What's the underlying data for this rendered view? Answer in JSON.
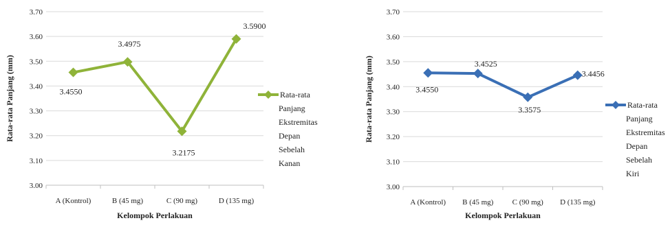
{
  "chart_data": [
    {
      "type": "line",
      "xlabel": "Kelompok Perlakuan",
      "ylabel": "Rata-rata Panjang (mm)",
      "categories": [
        "A (Kontrol)",
        "B (45 mg)",
        "C (90 mg)",
        "D (135 mg)"
      ],
      "ylim": [
        3.0,
        3.7
      ],
      "yticks": [
        "3.00",
        "3.10",
        "3.20",
        "3.30",
        "3.40",
        "3.50",
        "3.60",
        "3.70"
      ],
      "grid": true,
      "legend_position": "right",
      "series": [
        {
          "name": "Rata-rata Panjang Ekstremitas Depan Sebelah Kanan",
          "legend_lines": [
            "Rata-rata",
            "Panjang",
            "Ekstremitas",
            "Depan",
            "Sebelah",
            "Kanan"
          ],
          "color": "#8fb339",
          "values": [
            3.455,
            3.4975,
            3.2175,
            3.59
          ],
          "labels": [
            "3.4550",
            "3.4975",
            "3.2175",
            "3.5900"
          ]
        }
      ]
    },
    {
      "type": "line",
      "xlabel": "Kelompok Perlakuan",
      "ylabel": "Rata-rata Panjang (mm)",
      "categories": [
        "A (Kontrol)",
        "B (45 mg)",
        "C (90 mg)",
        "D (135 mg)"
      ],
      "ylim": [
        3.0,
        3.7
      ],
      "yticks": [
        "3.00",
        "3.10",
        "3.20",
        "3.30",
        "3.40",
        "3.50",
        "3.60",
        "3.70"
      ],
      "grid": true,
      "legend_position": "right",
      "series": [
        {
          "name": "Rata-rata Panjang Ekstremitas Depan Sebelah Kiri",
          "legend_lines": [
            "Rata-rata",
            "Panjang",
            "Ekstremitas",
            "Depan",
            "Sebelah",
            "Kiri"
          ],
          "color": "#3a6fb5",
          "values": [
            3.455,
            3.4525,
            3.3575,
            3.4456
          ],
          "labels": [
            "3.4550",
            "3.4525",
            "3.3575",
            "3.4456"
          ]
        }
      ]
    }
  ]
}
